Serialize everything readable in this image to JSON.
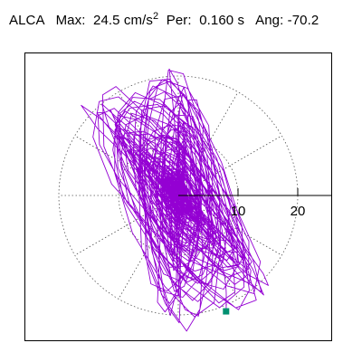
{
  "header": {
    "station": "ALCA",
    "max_label": "Max:",
    "max_value": "24.5 cm/s",
    "max_exponent": "2",
    "per_label": "Per:",
    "per_value": "0.160 s",
    "ang_label": "Ang:",
    "ang_value": "-70.2"
  },
  "chart_data": {
    "type": "particle-motion orbit (polar)",
    "units": "cm/s^2",
    "max_amplitude": 24.5,
    "period_s": 0.16,
    "angle_deg": -70.2,
    "radial_rings": [
      10,
      20
    ],
    "tick_labels": [
      "10",
      "20"
    ],
    "radial_axis_angle_deg": 0,
    "grid": "dotted",
    "trace_color": "#9400d3",
    "end_marker_color": "#009070",
    "end_point": {
      "x": 8.0,
      "y": -19.4
    }
  }
}
